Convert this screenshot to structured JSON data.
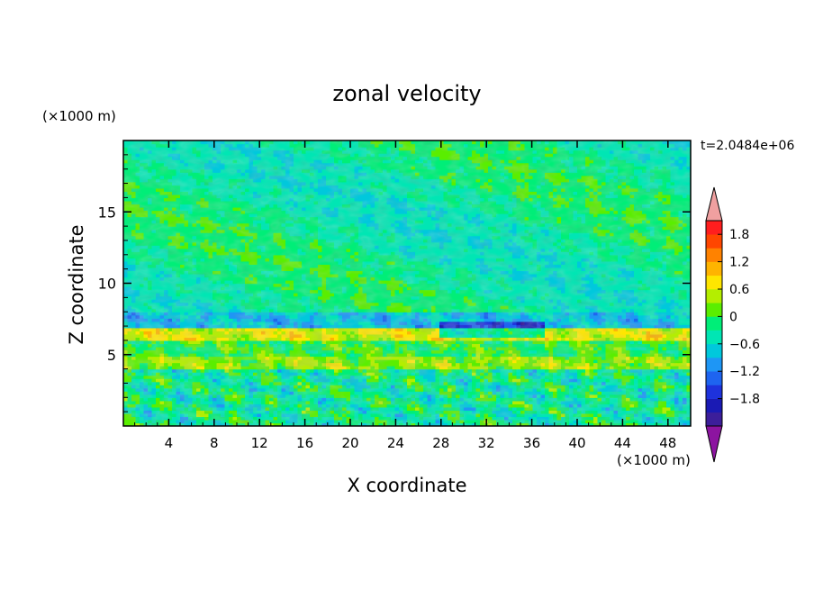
{
  "chart_data": {
    "type": "heatmap",
    "title": "zonal velocity",
    "xlabel": "X coordinate",
    "ylabel": "Z coordinate",
    "x_units": "(×1000 m)",
    "y_units": "(×1000 m)",
    "time_label": "t=2.0484e+06",
    "xlim": [
      0,
      50
    ],
    "ylim": [
      0,
      20
    ],
    "x_ticks": [
      4,
      8,
      12,
      16,
      20,
      24,
      28,
      32,
      36,
      40,
      44,
      48
    ],
    "y_ticks": [
      5,
      10,
      15
    ],
    "colorbar": {
      "levels": [
        -2.0,
        -1.8,
        -1.5,
        -1.2,
        -0.9,
        -0.6,
        -0.3,
        0,
        0.3,
        0.6,
        0.9,
        1.2,
        1.5,
        1.8,
        2.0
      ],
      "colors": [
        "#3c1e9a",
        "#1a1ab4",
        "#1e32dc",
        "#1e64f0",
        "#1e96f5",
        "#00c8dc",
        "#00e6b4",
        "#00ee78",
        "#5aee00",
        "#b4ee00",
        "#ffe600",
        "#ffb400",
        "#ff8200",
        "#ff4600",
        "#ff1e1e"
      ],
      "under_color": "#8c14a0",
      "over_color": "#f0a0a0",
      "tick_labels": [
        "1.8",
        "1.2",
        "0.6",
        "0",
        "−0.6",
        "−1.2",
        "−1.8"
      ]
    },
    "field_description_bands": [
      {
        "z_range": [
          0,
          4
        ],
        "dominant_value": 0.0,
        "texture": "mixed cyan/green/yellow small scale"
      },
      {
        "z_range": [
          4,
          5
        ],
        "dominant_value": 0.6,
        "texture": "yellow band"
      },
      {
        "z_range": [
          5,
          6
        ],
        "dominant_value": 0.3
      },
      {
        "z_range": [
          6,
          7
        ],
        "dominant_value": 0.9,
        "texture": "yellow band"
      },
      {
        "z_range": [
          7,
          8
        ],
        "dominant_value": -0.5,
        "texture": "cyan/blue band"
      },
      {
        "z_range": [
          8,
          20
        ],
        "dominant_value": 0.0,
        "texture": "green large patches"
      }
    ]
  }
}
